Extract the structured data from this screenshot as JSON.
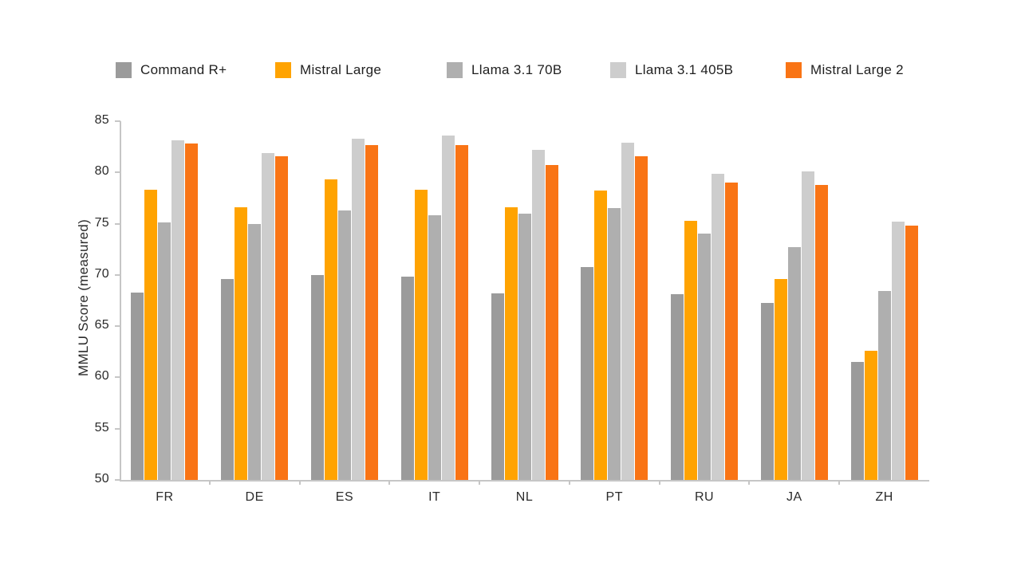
{
  "legend": {
    "items": [
      {
        "label": "Command R+",
        "color": "#9B9B9B"
      },
      {
        "label": "Mistral Large",
        "color": "#FFA301"
      },
      {
        "label": "Llama 3.1 70B",
        "color": "#AFAFAF"
      },
      {
        "label": "Llama 3.1 405B",
        "color": "#CDCDCD"
      },
      {
        "label": "Mistral Large 2",
        "color": "#F97415"
      }
    ]
  },
  "chart_data": {
    "type": "bar",
    "title": "",
    "xlabel": "",
    "ylabel": "MMLU Score (measured)",
    "ylim": [
      50,
      85
    ],
    "yticks": [
      50,
      55,
      60,
      65,
      70,
      75,
      80,
      85
    ],
    "grid": false,
    "legend_position": "top",
    "categories": [
      "FR",
      "DE",
      "ES",
      "IT",
      "NL",
      "PT",
      "RU",
      "JA",
      "ZH"
    ],
    "series": [
      {
        "name": "Command R+",
        "color": "#9B9B9B",
        "values": [
          68.3,
          69.6,
          70.0,
          69.8,
          68.2,
          70.8,
          68.1,
          67.3,
          61.5
        ]
      },
      {
        "name": "Mistral Large",
        "color": "#FFA301",
        "values": [
          78.3,
          76.6,
          79.3,
          78.3,
          76.6,
          78.2,
          75.3,
          69.6,
          62.6
        ]
      },
      {
        "name": "Llama 3.1 70B",
        "color": "#AFAFAF",
        "values": [
          75.1,
          75.0,
          76.3,
          75.8,
          76.0,
          76.5,
          74.0,
          72.7,
          68.4
        ]
      },
      {
        "name": "Llama 3.1 405B",
        "color": "#CDCDCD",
        "values": [
          83.1,
          81.9,
          83.3,
          83.6,
          82.2,
          82.9,
          79.9,
          80.1,
          75.2
        ]
      },
      {
        "name": "Mistral Large 2",
        "color": "#F97415",
        "values": [
          82.8,
          81.6,
          82.7,
          82.7,
          80.7,
          81.6,
          79.0,
          78.8,
          74.8
        ]
      }
    ]
  }
}
